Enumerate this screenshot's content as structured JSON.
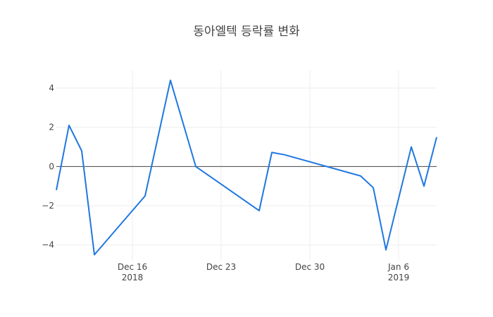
{
  "chart_data": {
    "type": "line",
    "title": "동아엘텍 등락률 변화",
    "xlabel": "",
    "ylabel": "",
    "x": [
      "2018-12-10",
      "2018-12-11",
      "2018-12-12",
      "2018-12-13",
      "2018-12-17",
      "2018-12-19",
      "2018-12-21",
      "2018-12-26",
      "2018-12-27",
      "2018-12-28",
      "2019-01-03",
      "2019-01-04",
      "2019-01-05",
      "2019-01-07",
      "2019-01-08",
      "2019-01-09"
    ],
    "values": [
      -1.2,
      2.1,
      0.8,
      -4.5,
      -1.5,
      4.4,
      0.0,
      -2.25,
      0.72,
      0.6,
      -0.48,
      -1.08,
      -4.25,
      1.0,
      -1.0,
      1.5
    ],
    "ylim": [
      -4.8,
      4.9
    ],
    "xlim": [
      "2018-12-10",
      "2019-01-09"
    ],
    "yticks": [
      -4,
      -2,
      0,
      2,
      4
    ],
    "ytick_labels": [
      "−4",
      "−2",
      "0",
      "2",
      "4"
    ],
    "xticks": [
      "2018-12-16",
      "2018-12-23",
      "2018-12-30",
      "2019-01-06"
    ],
    "xtick_labels": [
      [
        "Dec 16",
        "2018"
      ],
      [
        "Dec 23",
        ""
      ],
      [
        "Dec 30",
        ""
      ],
      [
        "Jan 6",
        "2019"
      ]
    ],
    "grid": true,
    "colors": {
      "line": "#1f77e0",
      "grid": "#eeeeee",
      "zeroline": "#444444",
      "text": "#444444"
    }
  }
}
